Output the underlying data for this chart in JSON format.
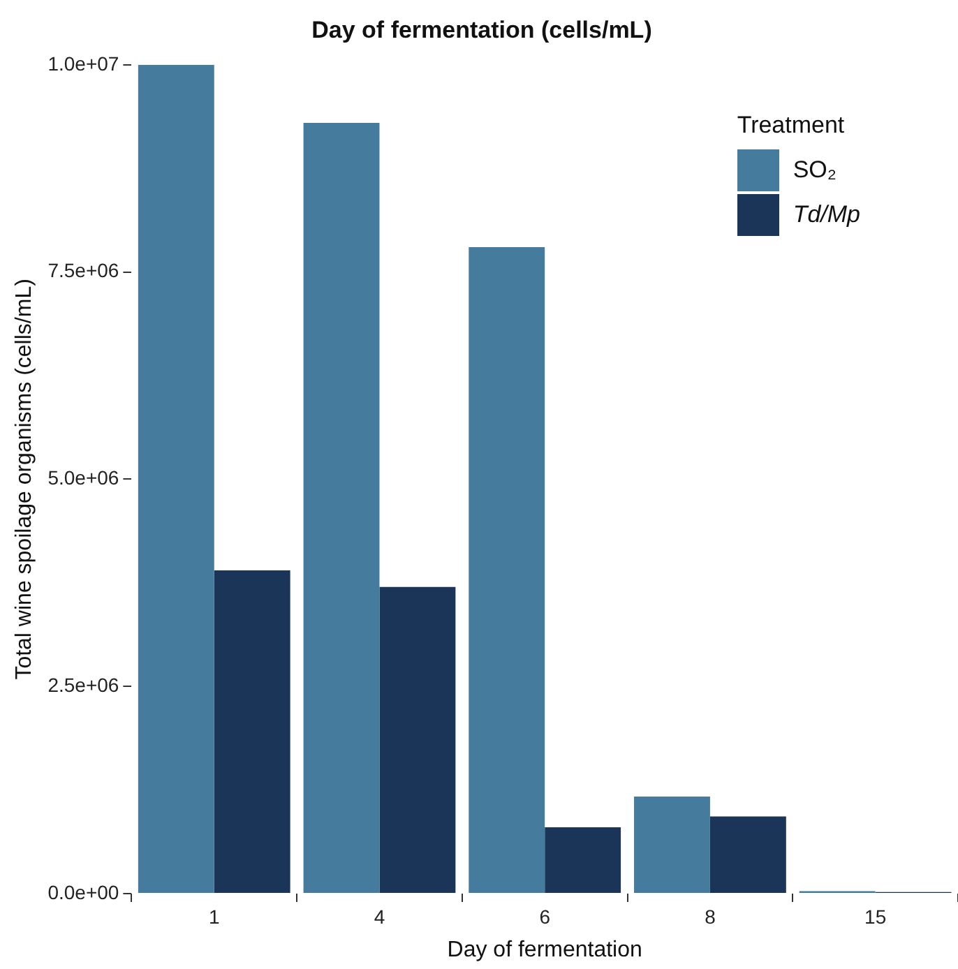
{
  "chart_data": {
    "type": "bar",
    "title": "Day of fermentation (cells/mL)",
    "xlabel": "Day of fermentation",
    "ylabel": "Total wine spoilage organisms (cells/mL)",
    "legend_title": "Treatment",
    "categories": [
      "1",
      "4",
      "6",
      "8",
      "15"
    ],
    "series": [
      {
        "name": "SO₂",
        "color": "#457b9d",
        "values": [
          10000000,
          9300000,
          7800000,
          1170000,
          30000
        ]
      },
      {
        "name": "Td/Mp",
        "color": "#1a3557",
        "values": [
          3900000,
          3700000,
          800000,
          930000,
          20000
        ]
      }
    ],
    "ylim": [
      0,
      10000000
    ],
    "yticks": [
      {
        "value": 0,
        "label": "0.0e+00"
      },
      {
        "value": 2500000,
        "label": "2.5e+06"
      },
      {
        "value": 5000000,
        "label": "5.0e+06"
      },
      {
        "value": 7500000,
        "label": "7.5e+06"
      },
      {
        "value": 10000000,
        "label": "1.0e+07"
      }
    ],
    "grid": false,
    "legend": "top right"
  }
}
